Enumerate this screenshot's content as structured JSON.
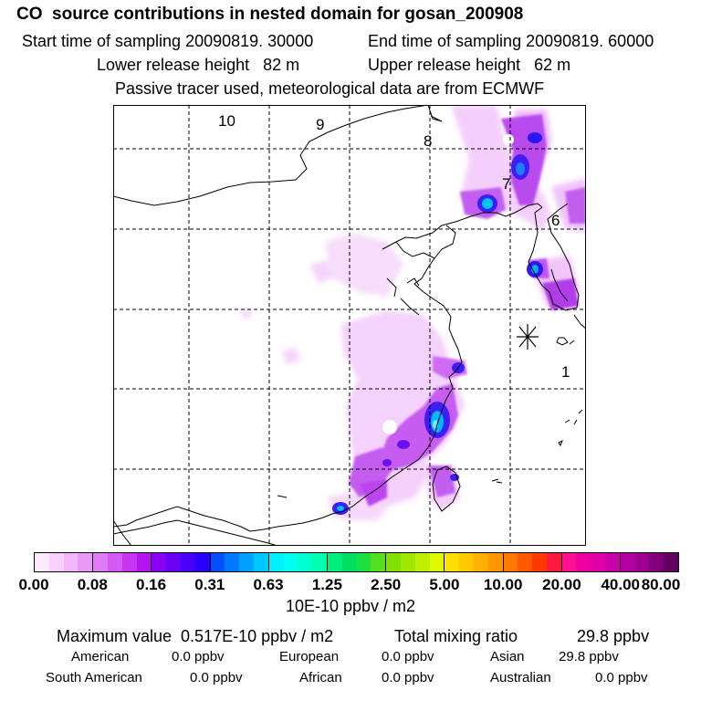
{
  "header": {
    "title": "CO  source contributions in nested domain for gosan_200908",
    "start_label": "Start time of sampling 20090819. 30000",
    "end_label": "End time of sampling 20090819. 60000",
    "lower_label": "Lower release height   82 m",
    "upper_label": "Upper release height   62 m",
    "tracer_note": "Passive tracer used, meteorological data are from ECMWF"
  },
  "map": {
    "region_labels": [
      "10",
      "9",
      "8",
      "7",
      "6",
      "1"
    ],
    "receptor_marker": "asterisk-icon"
  },
  "chart_data": {
    "type": "heatmap",
    "title": "CO  source contributions in nested domain for gosan_200908",
    "colorbar": {
      "unit_label": "10E-10 ppbv / m2",
      "ticks": [
        "0.00",
        "0.08",
        "0.16",
        "0.31",
        "0.63",
        "1.25",
        "2.50",
        "5.00",
        "10.00",
        "20.00",
        "40.00",
        "80.00"
      ],
      "colors": [
        [
          "#fde8fe",
          "#f9d0fd",
          "#f2b6fb",
          "#eb98f9"
        ],
        [
          "#e07cf7",
          "#d45af4",
          "#c636f1",
          "#b414ee"
        ],
        [
          "#8a00f0",
          "#6a00f2",
          "#4a00f6",
          "#2a00fa"
        ],
        [
          "#0050ff",
          "#0078ff",
          "#00a0ff",
          "#00c8ff"
        ],
        [
          "#00f0ff",
          "#00ffee",
          "#00ffd0",
          "#00ffb0"
        ],
        [
          "#00f080",
          "#00e060",
          "#20e040",
          "#50e020"
        ],
        [
          "#80e000",
          "#a0e800",
          "#c0f000",
          "#e0f800"
        ],
        [
          "#ffe000",
          "#ffc800",
          "#ffb000",
          "#ff9800"
        ],
        [
          "#ff7800",
          "#ff5800",
          "#ff3800",
          "#ff1840"
        ],
        [
          "#ff1090",
          "#f000a0",
          "#e000a8",
          "#c800a8"
        ],
        [
          "#b400a0",
          "#9c0090",
          "#80007c",
          "#600060"
        ]
      ]
    },
    "maximum_value": "0.517E-10 ppbv / m2",
    "total_mixing_ratio": "29.8 ppbv",
    "contributions": [
      {
        "region": "American",
        "value": "0.0 ppbv"
      },
      {
        "region": "European",
        "value": "0.0 ppbv"
      },
      {
        "region": "Asian",
        "value": "29.8 ppbv"
      },
      {
        "region": "South American",
        "value": "0.0 ppbv"
      },
      {
        "region": "African",
        "value": "0.0 ppbv"
      },
      {
        "region": "Australian",
        "value": "0.0 ppbv"
      }
    ]
  },
  "footer": {
    "max_label": "Maximum value  0.517E-10 ppbv / m2",
    "total_label": "Total mixing ratio",
    "total_value": "29.8 ppbv"
  }
}
